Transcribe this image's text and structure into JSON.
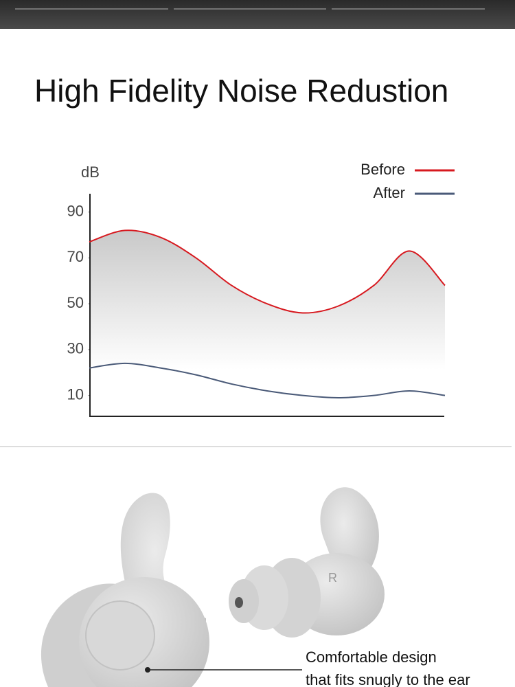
{
  "title": "High Fidelity Noise Redustion",
  "chart_data": {
    "type": "line",
    "y_label": "dB",
    "x": [
      0,
      10,
      20,
      30,
      40,
      50,
      60,
      70,
      80,
      90,
      100
    ],
    "xlim": [
      0,
      100
    ],
    "ylim": [
      0,
      98
    ],
    "yticks": [
      10,
      30,
      50,
      70,
      90
    ],
    "series": [
      {
        "name": "Before",
        "color": "#d7191f",
        "values": [
          77,
          82,
          79,
          70,
          58,
          50,
          46,
          49,
          58,
          73,
          58
        ]
      },
      {
        "name": "After",
        "color": "#4a5a78",
        "values": [
          22,
          24,
          22,
          19,
          15,
          12,
          10,
          9,
          10,
          12,
          10
        ]
      }
    ]
  },
  "earplug_letter": "R",
  "caption": [
    "Comfortable design",
    "that fits snugly to the ear"
  ]
}
